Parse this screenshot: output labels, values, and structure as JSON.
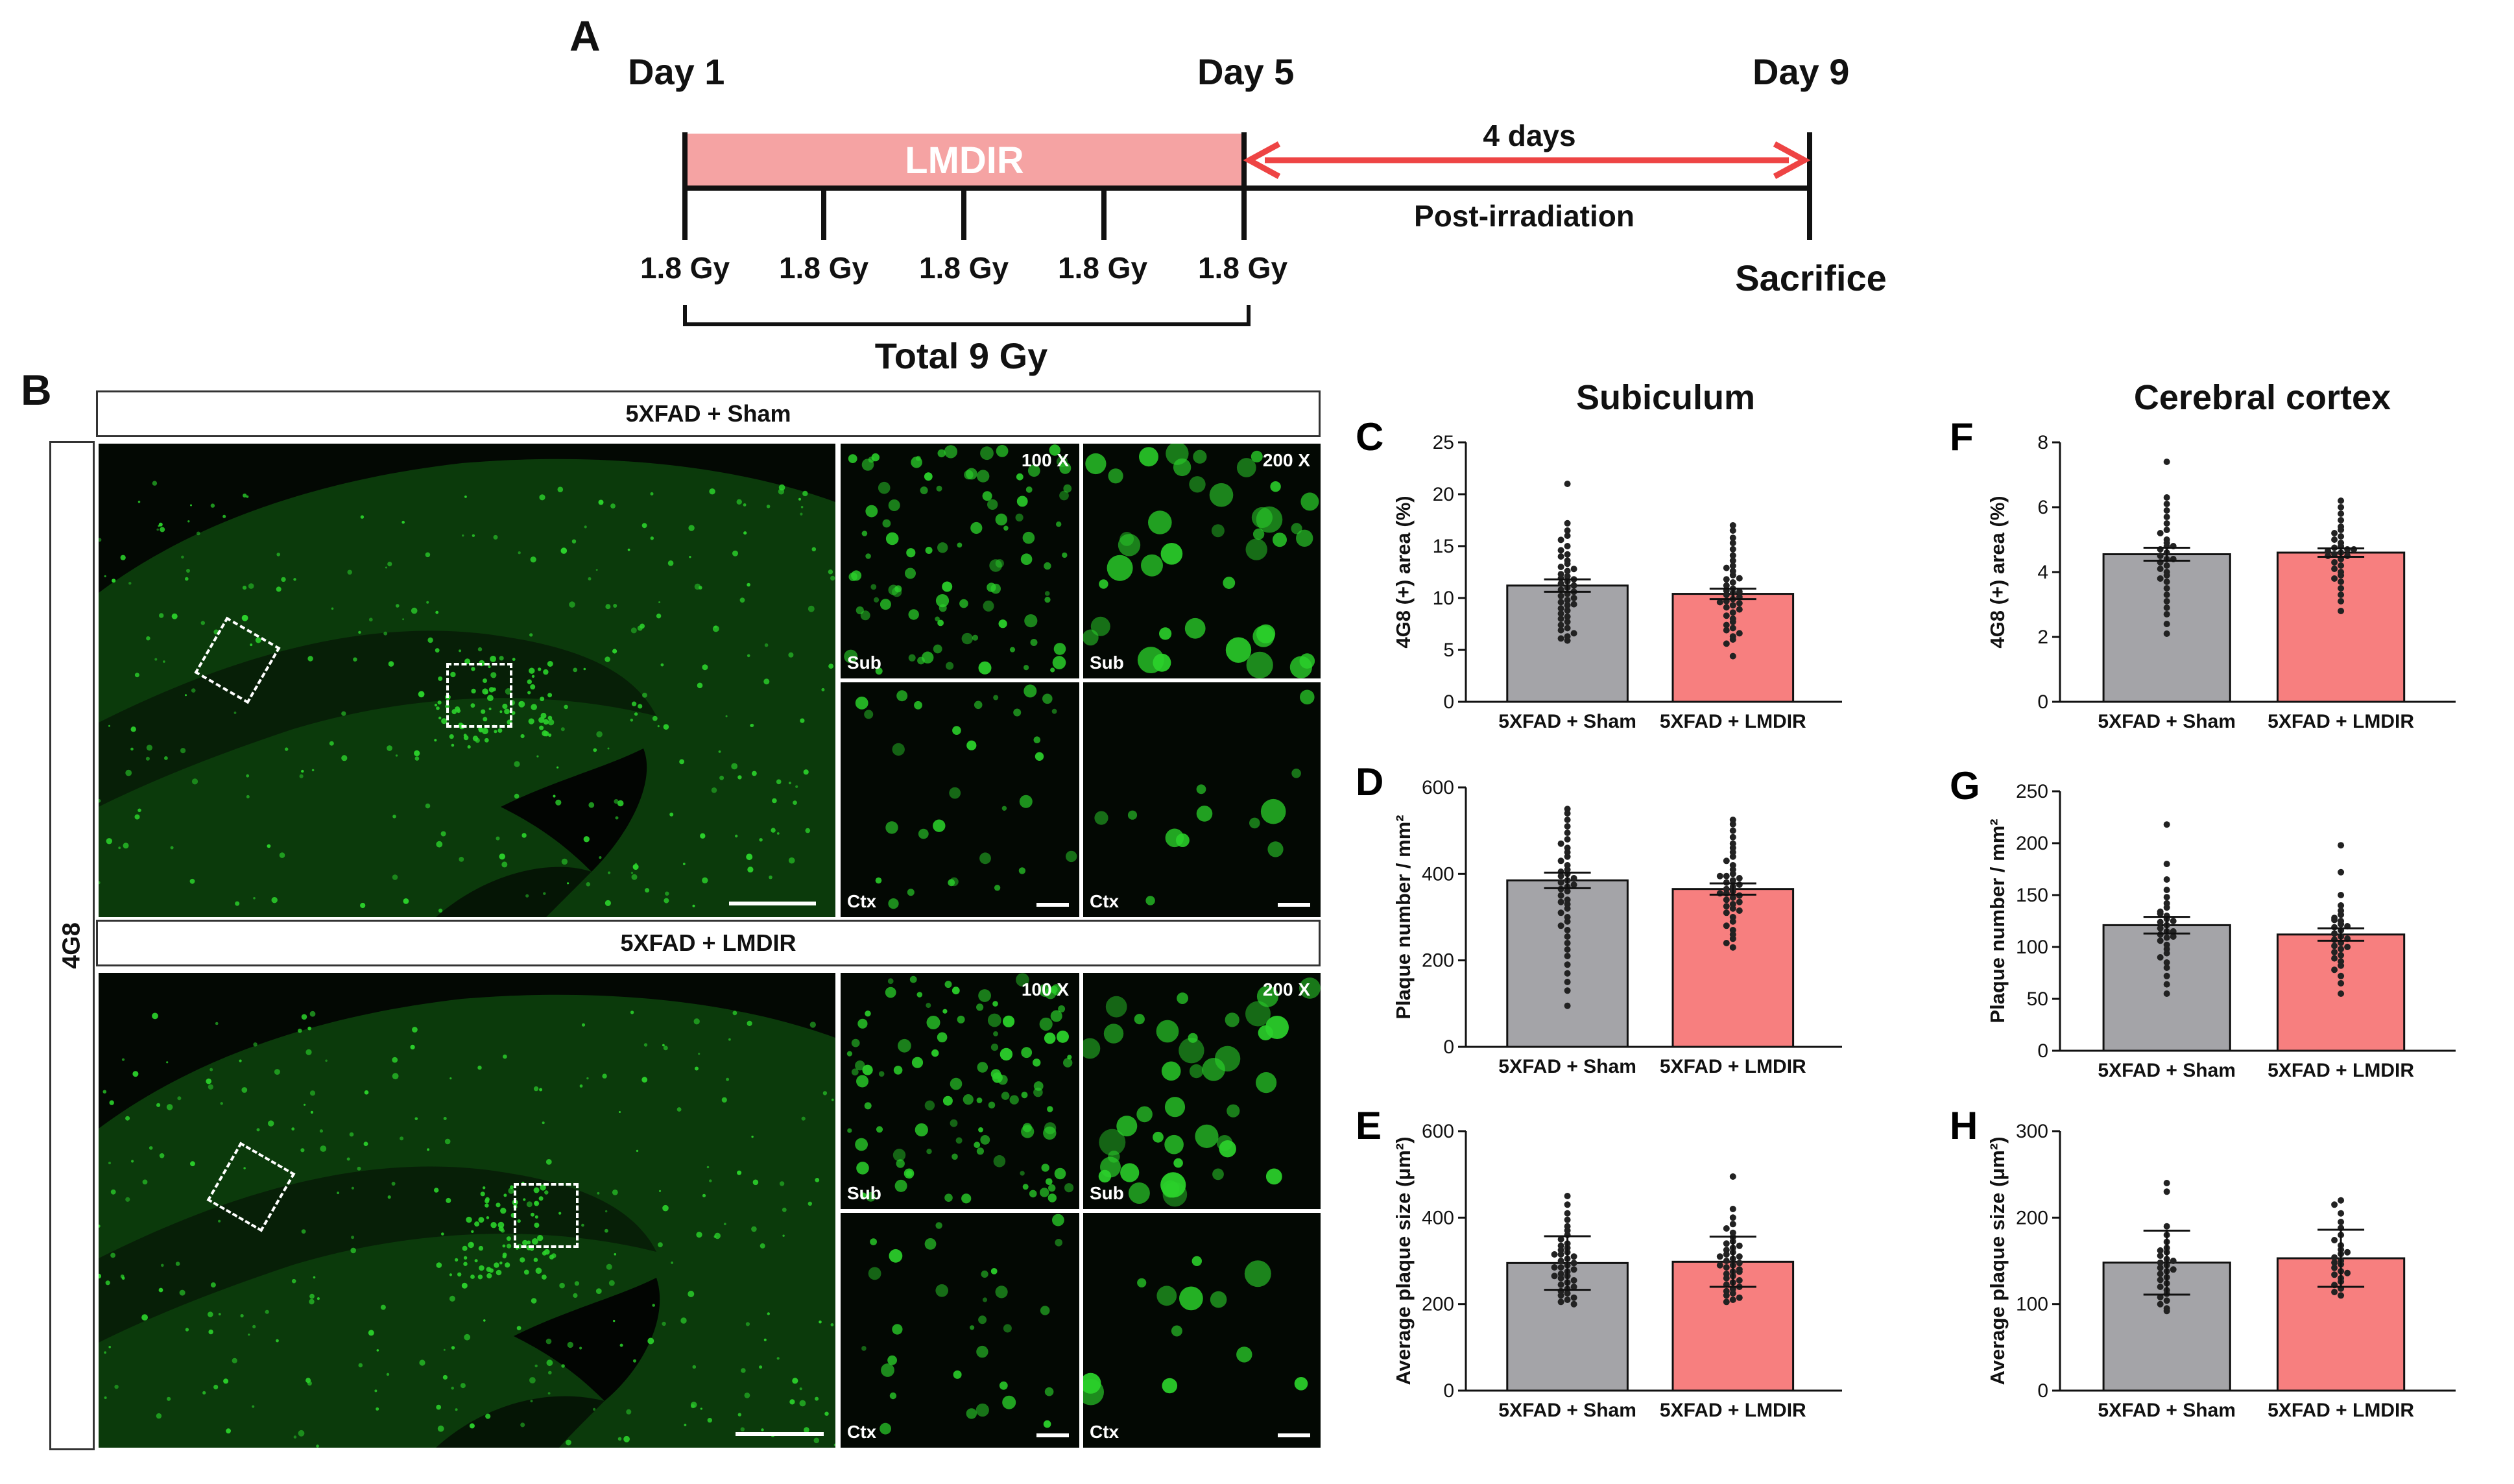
{
  "panel_a": {
    "letter": "A",
    "day1": "Day 1",
    "day5": "Day 5",
    "day9": "Day 9",
    "treatment": "LMDIR",
    "interval": "4 days",
    "post": "Post-irradiation",
    "doses": [
      "1.8 Gy",
      "1.8 Gy",
      "1.8 Gy",
      "1.8 Gy",
      "1.8 Gy"
    ],
    "sacrifice": "Sacrifice",
    "total": "Total 9 Gy",
    "colors": {
      "treatment_bar": "#f5a3a3",
      "arrow": "#ee4444"
    }
  },
  "panel_b": {
    "letter": "B",
    "stain": "4G8",
    "groups": [
      {
        "label": "5XFAD + Sham",
        "mag_low": "100 X",
        "mag_high": "200 X",
        "regions": [
          "Sub",
          "Sub",
          "Ctx",
          "Ctx"
        ]
      },
      {
        "label": "5XFAD + LMDIR",
        "mag_low": "100 X",
        "mag_high": "200 X",
        "regions": [
          "Sub",
          "Sub",
          "Ctx",
          "Ctx"
        ]
      }
    ]
  },
  "section_titles": {
    "subiculum": "Subiculum",
    "cortex": "Cerebral cortex"
  },
  "colors": {
    "sham_bar": "#a4a4a8",
    "lmdir_bar": "#f77f7f",
    "fluor": "#2bd12b"
  },
  "chart_data": [
    {
      "id": "C",
      "letter": "C",
      "type": "bar",
      "region": "Subiculum",
      "categories": [
        "5XFAD + Sham",
        "5XFAD + LMDIR"
      ],
      "values": [
        11.2,
        10.4
      ],
      "error": [
        0.6,
        0.5
      ],
      "ylabel": "4G8 (+) area (%)",
      "ylim": [
        0,
        25
      ],
      "yticks": [
        0,
        5,
        10,
        15,
        20,
        25
      ],
      "error_style": "sem",
      "points": [
        [
          21.0,
          17.2,
          16.5,
          16.0,
          15.6,
          15.0,
          14.6,
          14.2,
          14.0,
          13.6,
          13.3,
          13.0,
          12.6,
          12.3,
          12.1,
          11.9,
          11.6,
          11.4,
          11.2,
          11.0,
          10.8,
          10.6,
          10.4,
          10.2,
          10.0,
          9.8,
          9.6,
          9.3,
          9.0,
          8.8,
          8.5,
          8.2,
          8.0,
          7.7,
          7.4,
          7.1,
          6.9,
          6.6,
          6.3,
          6.1,
          5.9,
          12.8,
          9.4,
          11.8
        ],
        [
          17.0,
          16.5,
          15.8,
          15.3,
          14.7,
          14.1,
          13.6,
          13.1,
          12.6,
          12.2,
          11.8,
          11.5,
          11.2,
          10.9,
          10.7,
          10.5,
          10.3,
          10.1,
          9.9,
          9.7,
          9.5,
          9.3,
          9.1,
          8.9,
          8.6,
          8.3,
          8.0,
          7.7,
          7.4,
          7.1,
          6.9,
          6.6,
          6.3,
          6.0,
          5.6,
          4.4,
          11.9,
          9.6,
          10.6,
          12.9
        ]
      ]
    },
    {
      "id": "D",
      "letter": "D",
      "type": "bar",
      "region": "Subiculum",
      "categories": [
        "5XFAD + Sham",
        "5XFAD + LMDIR"
      ],
      "values": [
        385,
        365
      ],
      "error": [
        18,
        13
      ],
      "ylabel": "Plaque number / mm²",
      "ylim": [
        0,
        600
      ],
      "yticks": [
        0,
        200,
        400,
        600
      ],
      "error_style": "sem",
      "points": [
        [
          550,
          540,
          525,
          510,
          495,
          480,
          470,
          460,
          450,
          440,
          430,
          420,
          410,
          400,
          395,
          390,
          385,
          380,
          375,
          370,
          360,
          350,
          340,
          330,
          320,
          310,
          300,
          290,
          280,
          270,
          255,
          240,
          225,
          210,
          190,
          170,
          150,
          130,
          95,
          405,
          365,
          335
        ],
        [
          525,
          515,
          500,
          485,
          470,
          460,
          450,
          440,
          430,
          420,
          410,
          400,
          395,
          390,
          385,
          380,
          375,
          370,
          365,
          360,
          355,
          350,
          345,
          340,
          335,
          330,
          325,
          320,
          310,
          300,
          290,
          280,
          270,
          260,
          250,
          240,
          230,
          395,
          355,
          315
        ]
      ]
    },
    {
      "id": "E",
      "letter": "E",
      "type": "bar",
      "region": "Subiculum",
      "categories": [
        "5XFAD + Sham",
        "5XFAD + LMDIR"
      ],
      "values": [
        295,
        298
      ],
      "error": [
        62,
        58
      ],
      "ylabel": "Average plaque size (μm²)",
      "ylim": [
        0,
        600
      ],
      "yticks": [
        0,
        200,
        400,
        600
      ],
      "error_style": "sd",
      "points": [
        [
          450,
          430,
          410,
          395,
          380,
          370,
          360,
          350,
          340,
          335,
          330,
          320,
          315,
          310,
          305,
          300,
          295,
          290,
          285,
          280,
          275,
          270,
          265,
          260,
          255,
          250,
          245,
          240,
          235,
          230,
          225,
          220,
          215,
          210,
          205,
          200,
          315,
          285,
          265,
          325
        ],
        [
          495,
          420,
          400,
          385,
          375,
          365,
          355,
          345,
          340,
          330,
          325,
          320,
          315,
          310,
          305,
          300,
          295,
          290,
          285,
          280,
          275,
          270,
          265,
          260,
          255,
          250,
          245,
          240,
          235,
          230,
          225,
          220,
          215,
          210,
          205,
          310,
          290,
          275,
          335
        ]
      ]
    },
    {
      "id": "F",
      "letter": "F",
      "type": "bar",
      "region": "Cerebral cortex",
      "categories": [
        "5XFAD + Sham",
        "5XFAD + LMDIR"
      ],
      "values": [
        4.55,
        4.6
      ],
      "error": [
        0.2,
        0.13
      ],
      "ylabel": "4G8 (+) area (%)",
      "ylim": [
        0,
        8
      ],
      "yticks": [
        0,
        2,
        4,
        6,
        8
      ],
      "error_style": "sem",
      "points": [
        [
          7.4,
          6.3,
          6.1,
          5.9,
          5.7,
          5.5,
          5.3,
          5.2,
          5.0,
          4.9,
          4.8,
          4.7,
          4.6,
          4.5,
          4.4,
          4.3,
          4.2,
          4.1,
          4.0,
          3.9,
          3.8,
          3.7,
          3.5,
          3.3,
          3.1,
          2.9,
          2.7,
          2.4,
          2.1,
          4.8,
          4.4
        ],
        [
          6.2,
          6.0,
          5.8,
          5.6,
          5.4,
          5.3,
          5.2,
          5.1,
          5.0,
          4.9,
          4.8,
          4.75,
          4.7,
          4.65,
          4.6,
          4.55,
          4.5,
          4.4,
          4.3,
          4.2,
          4.1,
          4.0,
          3.9,
          3.8,
          3.7,
          3.5,
          3.3,
          3.1,
          2.8,
          4.7,
          4.5
        ]
      ]
    },
    {
      "id": "G",
      "letter": "G",
      "type": "bar",
      "region": "Cerebral cortex",
      "categories": [
        "5XFAD + Sham",
        "5XFAD + LMDIR"
      ],
      "values": [
        121,
        112
      ],
      "error": [
        8,
        6
      ],
      "ylabel": "Plaque number / mm²",
      "ylim": [
        0,
        250
      ],
      "yticks": [
        0,
        50,
        100,
        150,
        200,
        250
      ],
      "error_style": "sem",
      "points": [
        [
          218,
          180,
          165,
          155,
          148,
          142,
          138,
          134,
          130,
          127,
          124,
          121,
          118,
          115,
          112,
          109,
          106,
          102,
          98,
          94,
          90,
          85,
          80,
          72,
          64,
          55,
          125,
          115,
          110,
          132
        ],
        [
          198,
          172,
          150,
          140,
          135,
          131,
          128,
          125,
          122,
          119,
          116,
          113,
          110,
          107,
          104,
          101,
          98,
          95,
          92,
          89,
          86,
          82,
          78,
          72,
          65,
          55,
          120,
          108,
          100,
          126
        ]
      ]
    },
    {
      "id": "H",
      "letter": "H",
      "type": "bar",
      "region": "Cerebral cortex",
      "categories": [
        "5XFAD + Sham",
        "5XFAD + LMDIR"
      ],
      "values": [
        148,
        153
      ],
      "error": [
        37,
        33
      ],
      "ylabel": "Average plaque size (μm²)",
      "ylim": [
        0,
        300
      ],
      "yticks": [
        0,
        100,
        200,
        300
      ],
      "error_style": "sd",
      "points": [
        [
          240,
          230,
          190,
          180,
          172,
          165,
          160,
          156,
          152,
          148,
          145,
          142,
          138,
          135,
          131,
          128,
          124,
          120,
          116,
          112,
          108,
          104,
          100,
          95,
          92,
          150,
          140,
          162
        ],
        [
          220,
          215,
          205,
          195,
          188,
          180,
          174,
          168,
          163,
          158,
          154,
          150,
          146,
          142,
          138,
          134,
          130,
          126,
          122,
          118,
          114,
          110,
          160,
          148,
          136
        ]
      ]
    }
  ]
}
